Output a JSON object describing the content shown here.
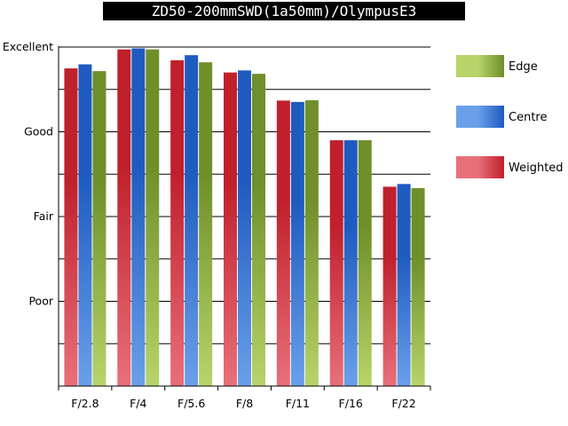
{
  "chart_data": {
    "type": "bar",
    "title": "ZD50-200mmSWD(1a50mm)/OlympusE3",
    "categories": [
      "F/2.8",
      "F/4",
      "F/5.6",
      "F/8",
      "F/11",
      "F/16",
      "F/22"
    ],
    "series": [
      {
        "name": "Weighted",
        "values": [
          93.7,
          99.3,
          96.1,
          92.5,
          84.2,
          72.5,
          58.8
        ],
        "color": "#c0202c",
        "light": "#e8707a"
      },
      {
        "name": "Centre",
        "values": [
          94.9,
          99.6,
          97.6,
          93.1,
          83.8,
          72.5,
          59.6
        ],
        "color": "#1f5bbf",
        "light": "#6aa0ea"
      },
      {
        "name": "Edge",
        "values": [
          92.9,
          99.3,
          95.5,
          92.1,
          84.3,
          72.5,
          58.4
        ],
        "color": "#6f8f2a",
        "light": "#b8d46a"
      }
    ],
    "legend_order": [
      "Edge",
      "Centre",
      "Weighted"
    ],
    "y_ticks": [
      {
        "label": "Excellent",
        "value": 100
      },
      {
        "label": "Good",
        "value": 75
      },
      {
        "label": "Fair",
        "value": 50
      },
      {
        "label": "Poor",
        "value": 25
      }
    ],
    "gridline_values": [
      12.5,
      25,
      37.5,
      50,
      62.5,
      75,
      87.5,
      100
    ],
    "ylim": [
      0,
      100
    ],
    "grid": true,
    "legend_position": "right"
  }
}
